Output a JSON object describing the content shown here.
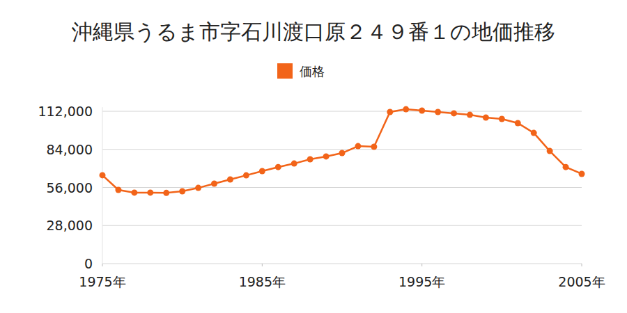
{
  "chart_data": {
    "type": "line",
    "title": "沖縄県うるま市字石川渡口原２４９番１の地価推移",
    "x": [
      1975,
      1976,
      1977,
      1978,
      1979,
      1980,
      1981,
      1982,
      1983,
      1984,
      1985,
      1986,
      1987,
      1988,
      1989,
      1990,
      1991,
      1992,
      1993,
      1994,
      1995,
      1996,
      1997,
      1998,
      1999,
      2000,
      2001,
      2002,
      2003,
      2004,
      2005
    ],
    "series": [
      {
        "name": "価格",
        "color": "#f26419",
        "marker": "circle",
        "values": [
          65000,
          54200,
          52200,
          52200,
          52000,
          53200,
          55700,
          58800,
          61900,
          64900,
          68000,
          71000,
          73600,
          76700,
          78800,
          81300,
          86400,
          85900,
          111500,
          113500,
          112500,
          111500,
          110500,
          109400,
          107400,
          106400,
          103300,
          96100,
          82800,
          71000,
          66000
        ]
      }
    ],
    "xlim": [
      1975,
      2005
    ],
    "xticks": [
      {
        "value": 1975,
        "label": "1975年"
      },
      {
        "value": 1985,
        "label": "1985年"
      },
      {
        "value": 1995,
        "label": "1995年"
      },
      {
        "value": 2005,
        "label": "2005年"
      }
    ],
    "ylim": [
      0,
      115000
    ],
    "yticks": [
      {
        "value": 0,
        "label": "0"
      },
      {
        "value": 28000,
        "label": "28,000"
      },
      {
        "value": 56000,
        "label": "56,000"
      },
      {
        "value": 84000,
        "label": "84,000"
      },
      {
        "value": 112000,
        "label": "112,000"
      }
    ],
    "grid": true,
    "legend": "top"
  }
}
